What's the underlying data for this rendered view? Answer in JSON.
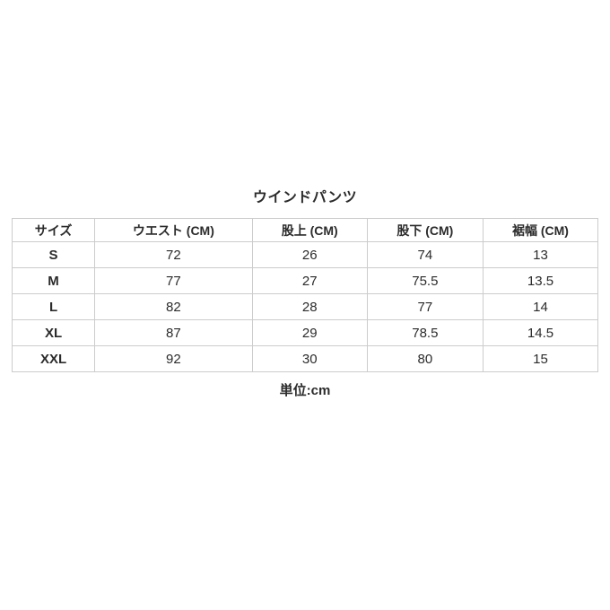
{
  "page": {
    "background_color": "#ffffff",
    "text_color": "#2b2b2b",
    "border_color": "#cccccc"
  },
  "title": "ウインドパンツ",
  "unit_note": "単位:cm",
  "chart_data": {
    "type": "table",
    "title": "ウインドパンツ",
    "columns": [
      "サイズ",
      "ウエスト (CM)",
      "股上 (CM)",
      "股下 (CM)",
      "裾幅 (CM)"
    ],
    "column_width_percent": [
      14.1,
      26.9,
      19.6,
      19.8,
      19.6
    ],
    "rows": [
      {
        "size": "S",
        "waist": "72",
        "rise": "26",
        "inseam": "74",
        "hem_width": "13"
      },
      {
        "size": "M",
        "waist": "77",
        "rise": "27",
        "inseam": "75.5",
        "hem_width": "13.5"
      },
      {
        "size": "L",
        "waist": "82",
        "rise": "28",
        "inseam": "77",
        "hem_width": "14"
      },
      {
        "size": "XL",
        "waist": "87",
        "rise": "29",
        "inseam": "78.5",
        "hem_width": "14.5"
      },
      {
        "size": "XXL",
        "waist": "92",
        "rise": "30",
        "inseam": "80",
        "hem_width": "15"
      }
    ],
    "unit_note": "単位:cm",
    "layout": {
      "grid": true,
      "header_bold": true,
      "size_column_bold": true
    }
  }
}
